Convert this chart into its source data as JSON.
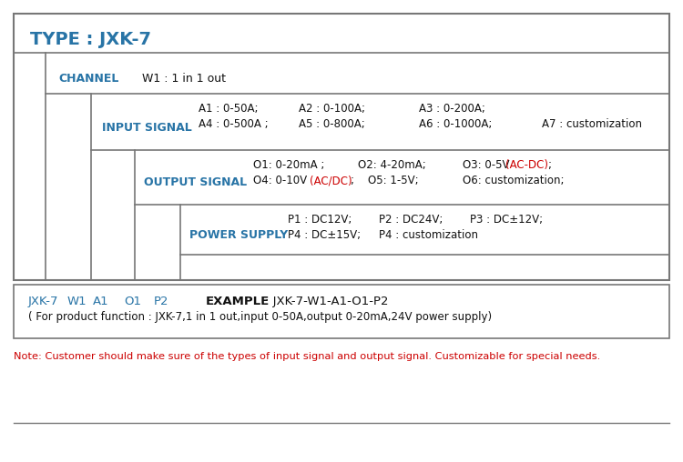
{
  "title": "TYPE : JXK-7",
  "bg_color": "#ffffff",
  "border_color": "#777777",
  "blue_color": "#2874A6",
  "red_color": "#cc0000",
  "black_color": "#111111",
  "channel_label": "CHANNEL",
  "channel_value": "W1 : 1 in 1 out",
  "input_label": "INPUT SIGNAL",
  "input_row1": "A1 : 0-50A;        A2 : 0-100A;       A3 : 0-200A;",
  "input_row2": "A4 : 0-500A ;      A5 : 0-800A;       A6 : 0-1000A;      A7 : customization",
  "output_label": "OUTPUT SIGNAL",
  "power_label": "POWER SUPPLY",
  "power_row1": "P1 : DC12V;    P2 : DC24V;    P3 : DC±12V;",
  "power_row2": "P4 : DC±15V;   P4 : customization",
  "example_line2": "( For product function : JXK-7,1 in 1 out,input 0-50A,output 0-20mA,24V power supply)",
  "note": "Note: Customer should make sure of the types of input signal and output signal. Customizable for special needs."
}
